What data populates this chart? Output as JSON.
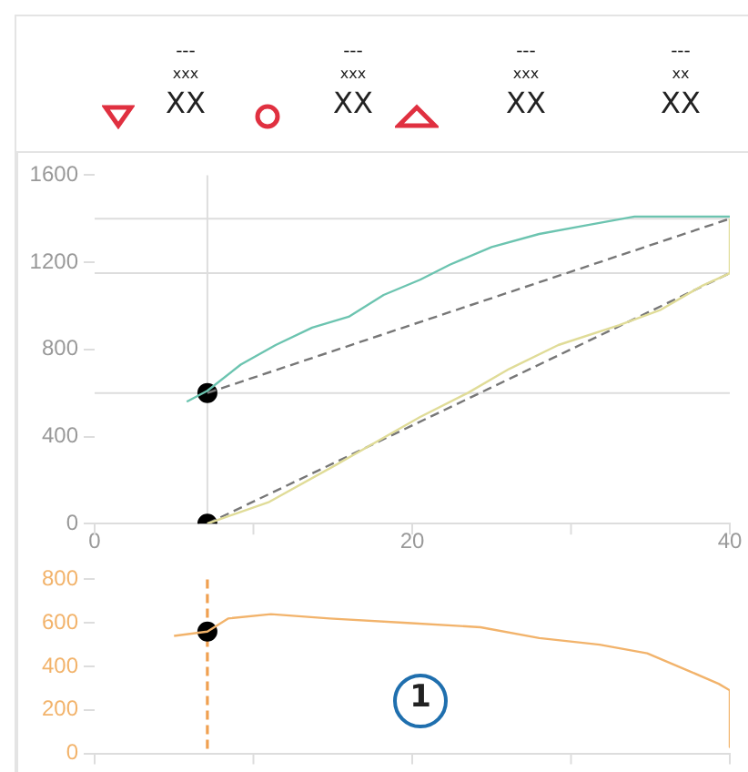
{
  "chart_data": [
    {
      "type": "line",
      "annotations": [
        "---",
        "xxx",
        "XX",
        "---",
        "xxx",
        "XX",
        "---",
        "xxx",
        "XX",
        "---",
        "xx",
        "XX"
      ],
      "xlim": [
        0,
        40
      ],
      "xticks": [
        0,
        {
          "value": 10,
          "label": null
        },
        20,
        {
          "value": 30,
          "label": null
        },
        40
      ],
      "ylim": [
        0,
        1600
      ],
      "yticks": [
        0,
        400,
        800,
        1200,
        1600
      ],
      "grid": false,
      "legend": false,
      "series": [
        {
          "color": "#6cc4b0",
          "x": [
            5.8,
            7.1,
            9.2,
            11.4,
            13.7,
            16,
            18.2,
            20.5,
            22.4,
            25,
            28,
            31,
            34,
            40
          ],
          "values": [
            560,
            610,
            730,
            820,
            900,
            950,
            1050,
            1120,
            1190,
            1270,
            1330,
            1370,
            1410,
            1410
          ],
          "marker": "none"
        },
        {
          "color": "#e0dc98",
          "x": [
            7.1,
            11,
            15.2,
            20.5,
            23.5,
            26.1,
            29.2,
            33,
            35.6,
            38.2,
            40,
            40
          ],
          "values": [
            0,
            100,
            270,
            490,
            600,
            710,
            820,
            910,
            980,
            1090,
            1150,
            1400
          ],
          "marker": "none"
        },
        {
          "color": "#777777",
          "x": [
            7.1,
            40
          ],
          "values": [
            600,
            1400
          ],
          "marker": "none",
          "line_style": "dashed"
        },
        {
          "color": "#777777",
          "x": [
            7.1,
            40
          ],
          "values": [
            0,
            1150
          ],
          "marker": "none",
          "line_style": "dashed"
        },
        {
          "type": "scatter",
          "color": "#000000",
          "x": [
            7.1,
            7.1
          ],
          "values": [
            600,
            0
          ],
          "marker": "circle"
        }
      ],
      "ref_lines": [
        {
          "axis": "y",
          "value": 1400,
          "color": "#dddddd"
        },
        {
          "axis": "y",
          "value": 1150,
          "color": "#dddddd"
        },
        {
          "axis": "y",
          "value": 600,
          "color": "#dddddd"
        },
        {
          "axis": "x",
          "value": 7.1,
          "color": "#dddddd"
        }
      ]
    },
    {
      "type": "line",
      "annotations": [
        "1"
      ],
      "tick_labels": "y",
      "xlim": [
        0,
        40
      ],
      "xticks": [
        0,
        10,
        20,
        30,
        40
      ],
      "ylim": [
        0,
        800
      ],
      "yticks": [
        0,
        200,
        400,
        600,
        800
      ],
      "grid": false,
      "legend": false,
      "series": [
        {
          "color": "#f2b36b",
          "x": [
            5,
            7.1,
            8.4,
            11.1,
            14.8,
            19.7,
            24.3,
            28,
            31.8,
            34.8,
            37.4,
            39.3,
            40,
            40
          ],
          "values": [
            540,
            560,
            620,
            640,
            620,
            600,
            580,
            530,
            500,
            460,
            380,
            320,
            290,
            30
          ],
          "marker": "none"
        },
        {
          "type": "scatter",
          "color": "#000000",
          "x": [
            7.1
          ],
          "values": [
            560
          ],
          "marker": "circle"
        }
      ],
      "ref_lines": [
        {
          "axis": "x",
          "value": 7.1,
          "color": "#f0a050",
          "line_style": "dashed"
        }
      ]
    }
  ]
}
